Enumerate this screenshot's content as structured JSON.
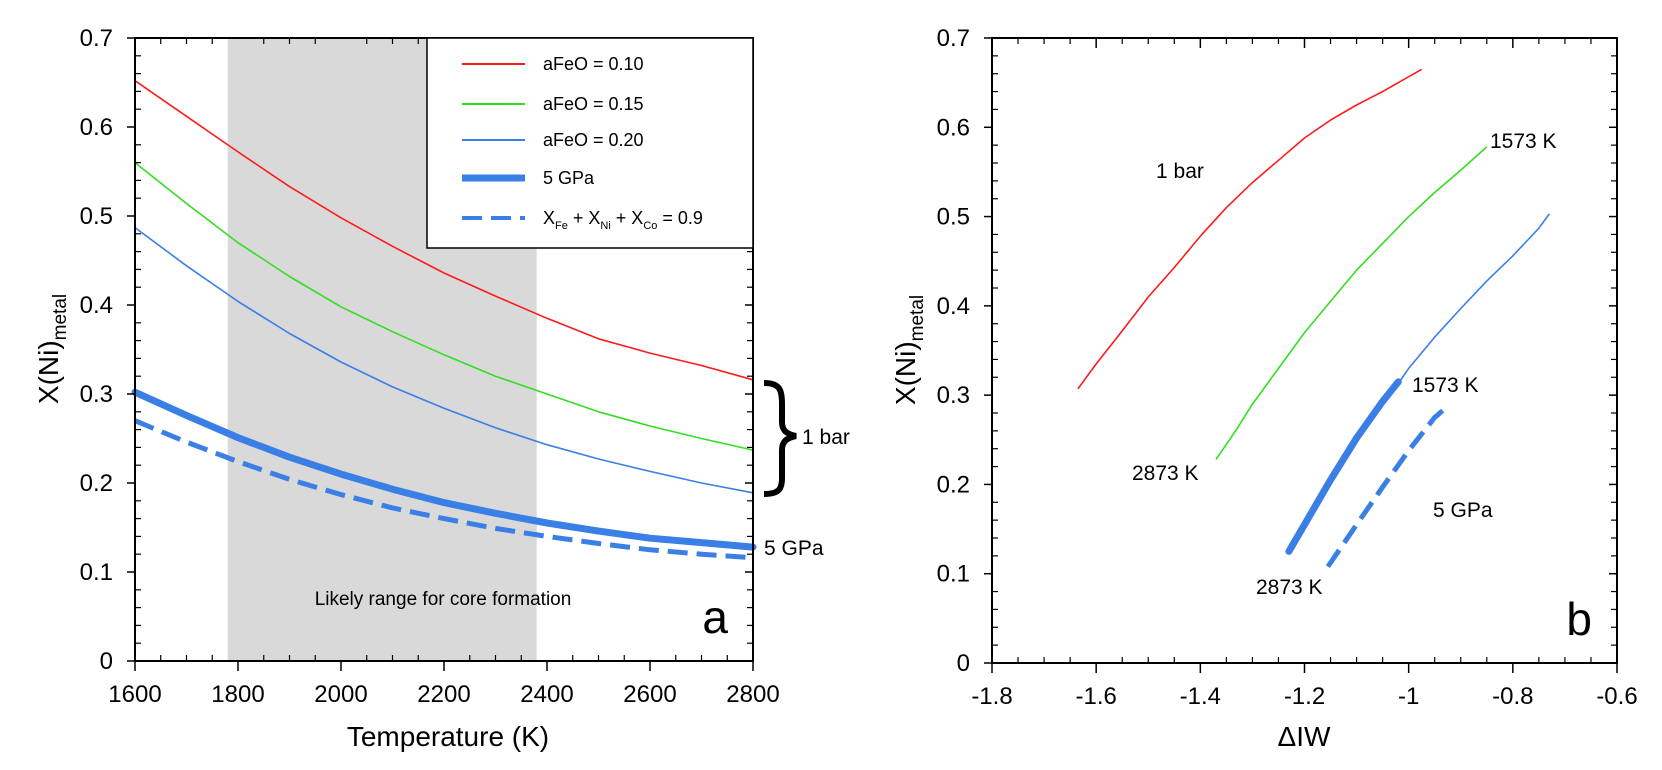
{
  "chart_data": [
    {
      "type": "line",
      "panel_label": "a",
      "xlabel": "Temperature (K)",
      "ylabel_main": "X(Ni)",
      "ylabel_sub": "metal",
      "xlim": [
        1600,
        2800
      ],
      "ylim": [
        0,
        0.7
      ],
      "x_ticks": [
        "1600",
        "1800",
        "2000",
        "2200",
        "2400",
        "2600",
        "2800"
      ],
      "y_ticks": [
        "0",
        "0.1",
        "0.2",
        "0.3",
        "0.4",
        "0.5",
        "0.6",
        "0.7"
      ],
      "shaded_region": {
        "x_range": [
          1780,
          2380
        ],
        "label": "Likely range for core formation"
      },
      "x": [
        1600,
        1700,
        1800,
        1900,
        2000,
        2100,
        2200,
        2300,
        2400,
        2500,
        2600,
        2700,
        2800
      ],
      "series": [
        {
          "name": "aFeO = 0.10",
          "color": "#ff1a1a",
          "style": "thin",
          "values": [
            0.652,
            0.612,
            0.572,
            0.533,
            0.498,
            0.466,
            0.436,
            0.41,
            0.385,
            0.362,
            0.346,
            0.332,
            0.316
          ]
        },
        {
          "name": "aFeO = 0.15",
          "color": "#33dd22",
          "style": "thin",
          "values": [
            0.56,
            0.514,
            0.47,
            0.432,
            0.398,
            0.37,
            0.344,
            0.32,
            0.3,
            0.28,
            0.264,
            0.25,
            0.237
          ]
        },
        {
          "name": "aFeO = 0.20",
          "color": "#3a7fe6",
          "style": "thin",
          "values": [
            0.487,
            0.444,
            0.404,
            0.368,
            0.336,
            0.308,
            0.284,
            0.262,
            0.243,
            0.227,
            0.213,
            0.2,
            0.189
          ]
        },
        {
          "name": "5 GPa",
          "color": "#3a7fe6",
          "style": "thick",
          "values": [
            0.302,
            0.276,
            0.251,
            0.229,
            0.21,
            0.193,
            0.178,
            0.166,
            0.155,
            0.146,
            0.138,
            0.133,
            0.128
          ]
        },
        {
          "name": "XFe + XNi + XCo = 0.9",
          "color": "#3a7fe6",
          "style": "dashed",
          "values": [
            0.27,
            0.246,
            0.224,
            0.204,
            0.187,
            0.172,
            0.16,
            0.149,
            0.14,
            0.132,
            0.125,
            0.12,
            0.116
          ]
        }
      ],
      "legend": {
        "placement": "top-right",
        "entries": [
          {
            "text": "aFeO = 0.10"
          },
          {
            "text": "aFeO = 0.15"
          },
          {
            "text": "aFeO = 0.20"
          },
          {
            "text": "5 GPa"
          },
          {
            "parts": [
              "X",
              "Fe",
              " + X",
              "Ni",
              " + X",
              "Co",
              " = 0.9"
            ]
          }
        ]
      },
      "annotations": {
        "bracket_label": "1 bar",
        "right_label": "5 GPa"
      }
    },
    {
      "type": "line",
      "panel_label": "b",
      "xlabel": "ΔIW",
      "ylabel_main": "X(Ni)",
      "ylabel_sub": "metal",
      "xlim": [
        -1.8,
        -0.6
      ],
      "ylim": [
        0,
        0.7
      ],
      "x_ticks": [
        "-1.8",
        "-1.6",
        "-1.4",
        "-1.2",
        "-1",
        "-0.8",
        "-0.6"
      ],
      "y_ticks": [
        "0",
        "0.1",
        "0.2",
        "0.3",
        "0.4",
        "0.5",
        "0.6",
        "0.7"
      ],
      "series": [
        {
          "name": "aFeO = 0.10 (1 bar)",
          "color": "#ff1a1a",
          "style": "thin",
          "x": [
            -1.635,
            -1.6,
            -1.55,
            -1.5,
            -1.45,
            -1.4,
            -1.35,
            -1.3,
            -1.25,
            -1.2,
            -1.15,
            -1.1,
            -1.05,
            -0.975
          ],
          "y": [
            0.307,
            0.335,
            0.372,
            0.41,
            0.443,
            0.478,
            0.51,
            0.538,
            0.563,
            0.588,
            0.608,
            0.625,
            0.64,
            0.665
          ]
        },
        {
          "name": "aFeO = 0.15 (1 bar)",
          "color": "#33dd22",
          "style": "thin",
          "x": [
            -1.37,
            -1.33,
            -1.3,
            -1.25,
            -1.2,
            -1.15,
            -1.1,
            -1.05,
            -1.0,
            -0.95,
            -0.9,
            -0.85
          ],
          "y": [
            0.228,
            0.262,
            0.29,
            0.33,
            0.37,
            0.405,
            0.44,
            0.47,
            0.5,
            0.527,
            0.552,
            0.578
          ]
        },
        {
          "name": "aFeO = 0.20 (1 bar)",
          "color": "#3a7fe6",
          "style": "thin",
          "x": [
            -1.02,
            -1.0,
            -0.95,
            -0.9,
            -0.85,
            -0.8,
            -0.75,
            -0.73
          ],
          "y": [
            0.313,
            0.33,
            0.365,
            0.397,
            0.428,
            0.456,
            0.487,
            0.503
          ]
        },
        {
          "name": "5 GPa",
          "color": "#3a7fe6",
          "style": "thick",
          "x": [
            -1.23,
            -1.2,
            -1.15,
            -1.1,
            -1.05,
            -1.02
          ],
          "y": [
            0.125,
            0.155,
            0.205,
            0.252,
            0.293,
            0.315
          ]
        },
        {
          "name": "XFe + XNi + XCo = 0.9",
          "color": "#3a7fe6",
          "style": "dashed",
          "x": [
            -1.155,
            -1.1,
            -1.05,
            -1.0,
            -0.95,
            -0.93
          ],
          "y": [
            0.108,
            0.155,
            0.197,
            0.238,
            0.275,
            0.285
          ]
        }
      ],
      "annotations": {
        "label_1bar": "1 bar",
        "label_1573_upper": "1573 K",
        "label_2873_left": "2873 K",
        "label_1573_lower": "1573 K",
        "label_2873_lower": "2873 K",
        "label_5gpa": "5 GPa"
      }
    }
  ]
}
